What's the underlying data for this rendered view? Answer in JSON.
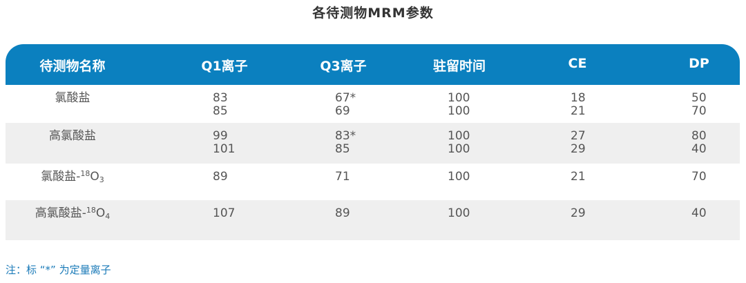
{
  "title": "各待测物MRM参数",
  "table": {
    "headers": [
      "待测物名称",
      "Q1离子",
      "Q3离子",
      "驻留时间",
      "CE",
      "DP"
    ],
    "header_color": "#0b80bf",
    "rows": [
      {
        "name": {
          "base": "氯酸盐",
          "sup": "",
          "el": "",
          "sub": ""
        },
        "q1": "83\n85",
        "q3": "67*\n69",
        "dwell": "100\n100",
        "ce": "18\n21",
        "dp": "50\n70"
      },
      {
        "name": {
          "base": "高氯酸盐",
          "sup": "",
          "el": "",
          "sub": ""
        },
        "q1": "99\n101",
        "q3": "83*\n85",
        "dwell": "100\n100",
        "ce": "27\n29",
        "dp": "80\n40"
      },
      {
        "name": {
          "base": "氯酸盐-",
          "sup": "18",
          "el": "O",
          "sub": "3"
        },
        "q1": "89",
        "q3": "71",
        "dwell": "100",
        "ce": "21",
        "dp": "70"
      },
      {
        "name": {
          "base": "高氯酸盐-",
          "sup": "18",
          "el": "O",
          "sub": "4"
        },
        "q1": "107",
        "q3": "89",
        "dwell": "100",
        "ce": "29",
        "dp": "40"
      }
    ]
  },
  "note": "注：标 “*” 为定量离子"
}
